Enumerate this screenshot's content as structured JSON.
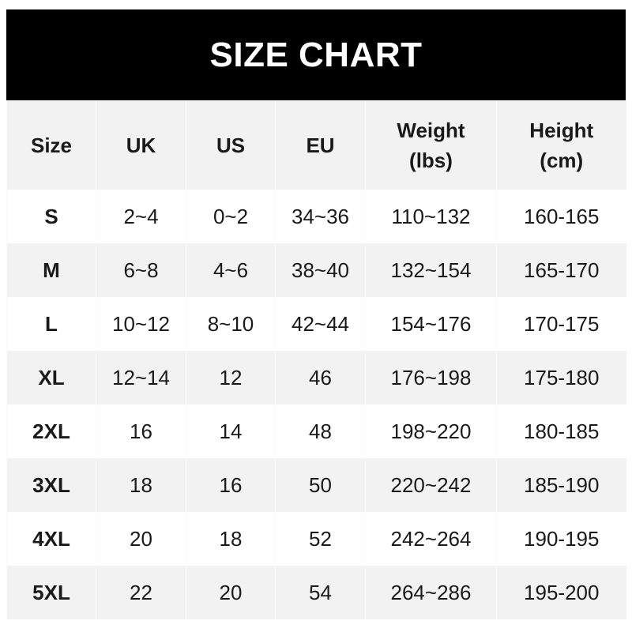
{
  "title": "SIZE CHART",
  "chart_data": {
    "type": "table",
    "title": "SIZE CHART",
    "columns": [
      "Size",
      "UK",
      "US",
      "EU",
      "Weight (lbs)",
      "Height (cm)"
    ],
    "header_lines": [
      [
        "Size"
      ],
      [
        "UK"
      ],
      [
        "US"
      ],
      [
        "EU"
      ],
      [
        "Weight",
        "(lbs)"
      ],
      [
        "Height",
        "(cm)"
      ]
    ],
    "rows": [
      [
        "S",
        "2~4",
        "0~2",
        "34~36",
        "110~132",
        "160-165"
      ],
      [
        "M",
        "6~8",
        "4~6",
        "38~40",
        "132~154",
        "165-170"
      ],
      [
        "L",
        "10~12",
        "8~10",
        "42~44",
        "154~176",
        "170-175"
      ],
      [
        "XL",
        "12~14",
        "12",
        "46",
        "176~198",
        "175-180"
      ],
      [
        "2XL",
        "16",
        "14",
        "48",
        "198~220",
        "180-185"
      ],
      [
        "3XL",
        "18",
        "16",
        "50",
        "220~242",
        "185-190"
      ],
      [
        "4XL",
        "20",
        "18",
        "52",
        "242~264",
        "190-195"
      ],
      [
        "5XL",
        "22",
        "20",
        "54",
        "264~286",
        "195-200"
      ]
    ]
  },
  "colors": {
    "header_bg": "#000000",
    "stripe": "#f2f2f2",
    "text": "#1a1a1a"
  }
}
